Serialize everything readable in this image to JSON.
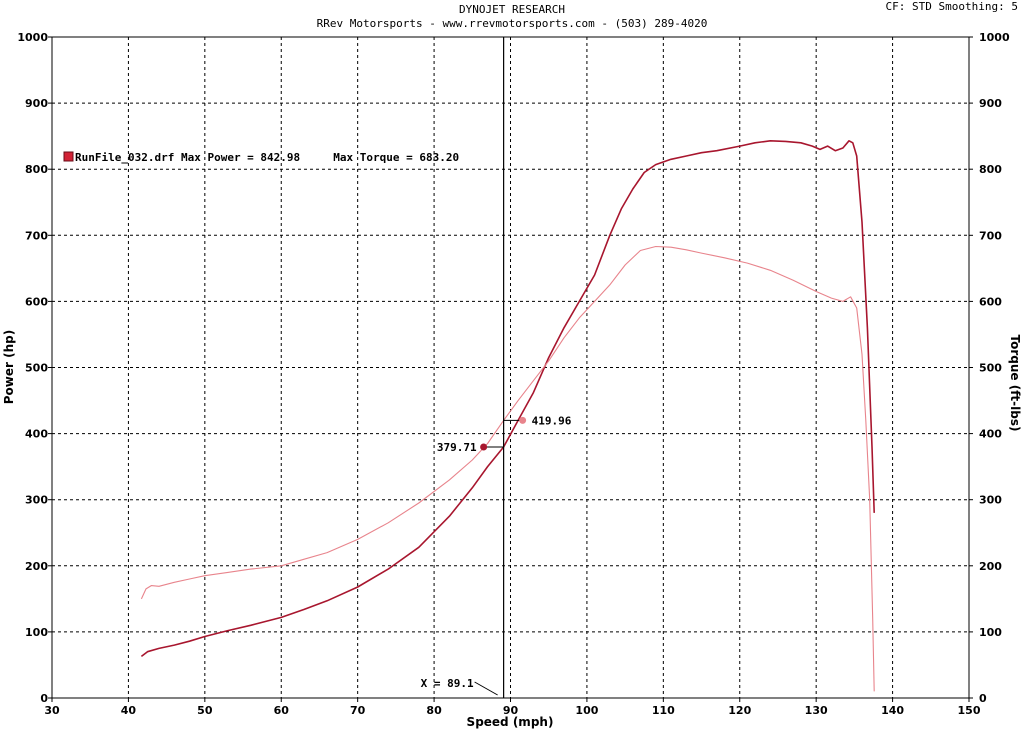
{
  "header": {
    "title": "DYNOJET RESEARCH",
    "subtitle": "RRev Motorsports - www.rrevmotorsports.com - (503) 289-4020",
    "settings": "CF: STD  Smoothing: 5"
  },
  "legend": {
    "text": "RunFile_032.drf Max Power = 842.98     Max Torque = 683.20"
  },
  "cursor": {
    "label": "X = 89.1",
    "x": 89.1,
    "power_value": 379.71,
    "torque_value": 419.96,
    "power_label": "379.71",
    "torque_label": "419.96"
  },
  "chart_data": {
    "type": "line",
    "title": "DYNOJET RESEARCH",
    "xlabel": "Speed (mph)",
    "ylabel": "Power (hp)",
    "y2label": "Torque (ft-lbs)",
    "xlim": [
      30,
      150
    ],
    "ylim": [
      0,
      1000
    ],
    "y2lim": [
      0,
      1000
    ],
    "xticks": [
      30,
      40,
      50,
      60,
      70,
      80,
      90,
      100,
      110,
      120,
      130,
      140,
      150
    ],
    "yticks": [
      0,
      100,
      200,
      300,
      400,
      500,
      600,
      700,
      800,
      900,
      1000
    ],
    "grid": true,
    "colors": {
      "power": "#a8162e",
      "torque": "#e8848c"
    },
    "series": [
      {
        "name": "Power",
        "axis": "left",
        "x": [
          41.7,
          42.5,
          44,
          46,
          48,
          50,
          53,
          56,
          60,
          63,
          66,
          70,
          74,
          78,
          82,
          85,
          87,
          89.1,
          91,
          93,
          95,
          97,
          99,
          101,
          103,
          104.5,
          106,
          107.5,
          109,
          111,
          113,
          115,
          117,
          120,
          122,
          124,
          126,
          128,
          129.5,
          130.5,
          131.5,
          132.5,
          133.5,
          134.3,
          134.8,
          135.3,
          136,
          136.7,
          137.3,
          137.6
        ],
        "y": [
          63,
          70,
          75,
          80,
          86,
          93,
          102,
          110,
          122,
          134,
          147,
          168,
          195,
          228,
          275,
          318,
          350,
          379.71,
          420,
          462,
          515,
          560,
          600,
          640,
          700,
          740,
          770,
          795,
          807,
          815,
          820,
          825,
          828,
          835,
          840,
          843,
          842,
          840,
          835,
          830,
          835,
          828,
          832,
          843,
          840,
          820,
          720,
          560,
          380,
          280
        ]
      },
      {
        "name": "Torque",
        "axis": "right",
        "x": [
          41.7,
          42.3,
          43,
          44,
          46,
          48,
          50,
          53,
          56,
          60,
          63,
          66,
          70,
          74,
          78,
          82,
          85,
          87,
          89.1,
          91,
          93,
          95,
          97,
          99,
          101,
          103,
          105,
          107,
          109,
          111,
          113,
          115,
          118,
          121,
          124,
          127,
          130,
          132,
          133.5,
          134.5,
          135.3,
          136,
          136.5,
          137,
          137.4,
          137.6
        ],
        "y": [
          150,
          165,
          170,
          169,
          175,
          180,
          185,
          190,
          195,
          200,
          210,
          220,
          240,
          265,
          295,
          330,
          360,
          385,
          419.96,
          450,
          480,
          510,
          545,
          575,
          600,
          625,
          655,
          677,
          683,
          682,
          678,
          673,
          666,
          658,
          647,
          632,
          615,
          605,
          600,
          607,
          590,
          520,
          420,
          300,
          120,
          10
        ]
      }
    ]
  }
}
